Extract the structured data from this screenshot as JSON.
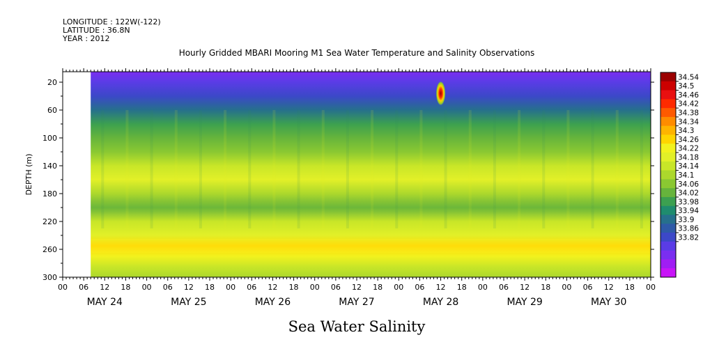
{
  "header": {
    "longitude": "LONGITUDE : 122W(-122)",
    "latitude": "LATITUDE : 36.8N",
    "year": "YEAR : 2012"
  },
  "chart_data": {
    "type": "heatmap",
    "title": "Hourly Gridded MBARI Mooring M1 Sea Water Temperature and Salinity Observations",
    "xlabel": "Sea Water Salinity",
    "ylabel": "DEPTH (m)",
    "y_ticks": [
      20,
      60,
      100,
      140,
      180,
      220,
      260,
      300
    ],
    "ylim": [
      300,
      5
    ],
    "x_hour_ticks": [
      "00",
      "06",
      "12",
      "18",
      "00",
      "06",
      "12",
      "18",
      "00",
      "06",
      "12",
      "18",
      "00",
      "06",
      "12",
      "18",
      "00",
      "06",
      "12",
      "18",
      "00",
      "06",
      "12",
      "18",
      "00",
      "06",
      "12",
      "18",
      "00"
    ],
    "x_date_labels": [
      "MAY 24",
      "MAY 25",
      "MAY 26",
      "MAY 27",
      "MAY 28",
      "MAY 29",
      "MAY 30"
    ],
    "colorbar_labels": [
      "34.54",
      "34.5",
      "34.46",
      "34.42",
      "34.38",
      "34.34",
      "34.3",
      "34.26",
      "34.22",
      "34.18",
      "34.14",
      "34.1",
      "34.06",
      "34.02",
      "33.98",
      "33.94",
      "33.9",
      "33.86",
      "33.82"
    ],
    "colorbar_colors": [
      "#9b0000",
      "#cc0000",
      "#e81010",
      "#ff2a00",
      "#ff5a00",
      "#ff8c00",
      "#ffb400",
      "#ffd500",
      "#f2f21e",
      "#e2f028",
      "#c8e628",
      "#acd82c",
      "#8ac832",
      "#66b43c",
      "#3ca050",
      "#1f8c6e",
      "#26708c",
      "#2e5aa8",
      "#3c48c8",
      "#5a3ce6",
      "#7a2ef0",
      "#a01ef4",
      "#c814f8"
    ],
    "profile": [
      {
        "depth": 5,
        "salinity": 33.88
      },
      {
        "depth": 20,
        "salinity": 33.92
      },
      {
        "depth": 40,
        "salinity": 33.96
      },
      {
        "depth": 60,
        "salinity": 34.02
      },
      {
        "depth": 80,
        "salinity": 34.07
      },
      {
        "depth": 100,
        "salinity": 34.1
      },
      {
        "depth": 120,
        "salinity": 34.15
      },
      {
        "depth": 140,
        "salinity": 34.2
      },
      {
        "depth": 160,
        "salinity": 34.23
      },
      {
        "depth": 180,
        "salinity": 34.19
      },
      {
        "depth": 200,
        "salinity": 34.13
      },
      {
        "depth": 220,
        "salinity": 34.2
      },
      {
        "depth": 240,
        "salinity": 34.26
      },
      {
        "depth": 255,
        "salinity": 34.3
      },
      {
        "depth": 270,
        "salinity": 34.27
      },
      {
        "depth": 285,
        "salinity": 34.22
      },
      {
        "depth": 300,
        "salinity": 34.19
      }
    ],
    "anomalies": [
      {
        "label": "high-salinity spot",
        "day_hour": 108,
        "depth": 36,
        "salinity": 34.54
      }
    ],
    "data_start_hour": 8,
    "grid": false
  }
}
